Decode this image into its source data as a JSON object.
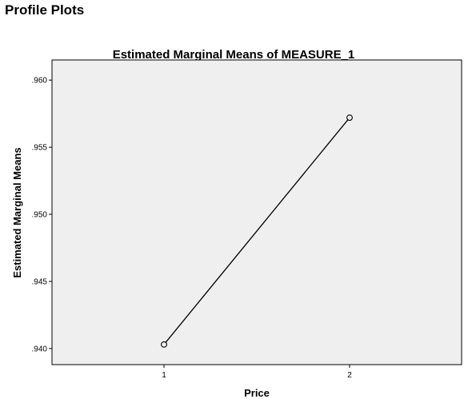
{
  "page": {
    "section_title": "Profile Plots"
  },
  "chart_data": {
    "type": "line",
    "title": "Estimated Marginal Means of MEASURE_1",
    "xlabel": "Price",
    "ylabel": "Estimated Marginal Means",
    "categories": [
      "1",
      "2"
    ],
    "series": [
      {
        "values": [
          0.9403,
          0.9572
        ]
      }
    ],
    "ylim": [
      0.9388,
      0.9615
    ],
    "yticks": [
      0.94,
      0.945,
      0.95,
      0.955,
      0.96
    ],
    "ytick_labels": [
      ".940",
      ".945",
      ".950",
      ".955",
      ".960"
    ],
    "grid": false,
    "marker": "open-circle",
    "colors": {
      "plot_background": "#efefef",
      "line": "#000000"
    }
  }
}
